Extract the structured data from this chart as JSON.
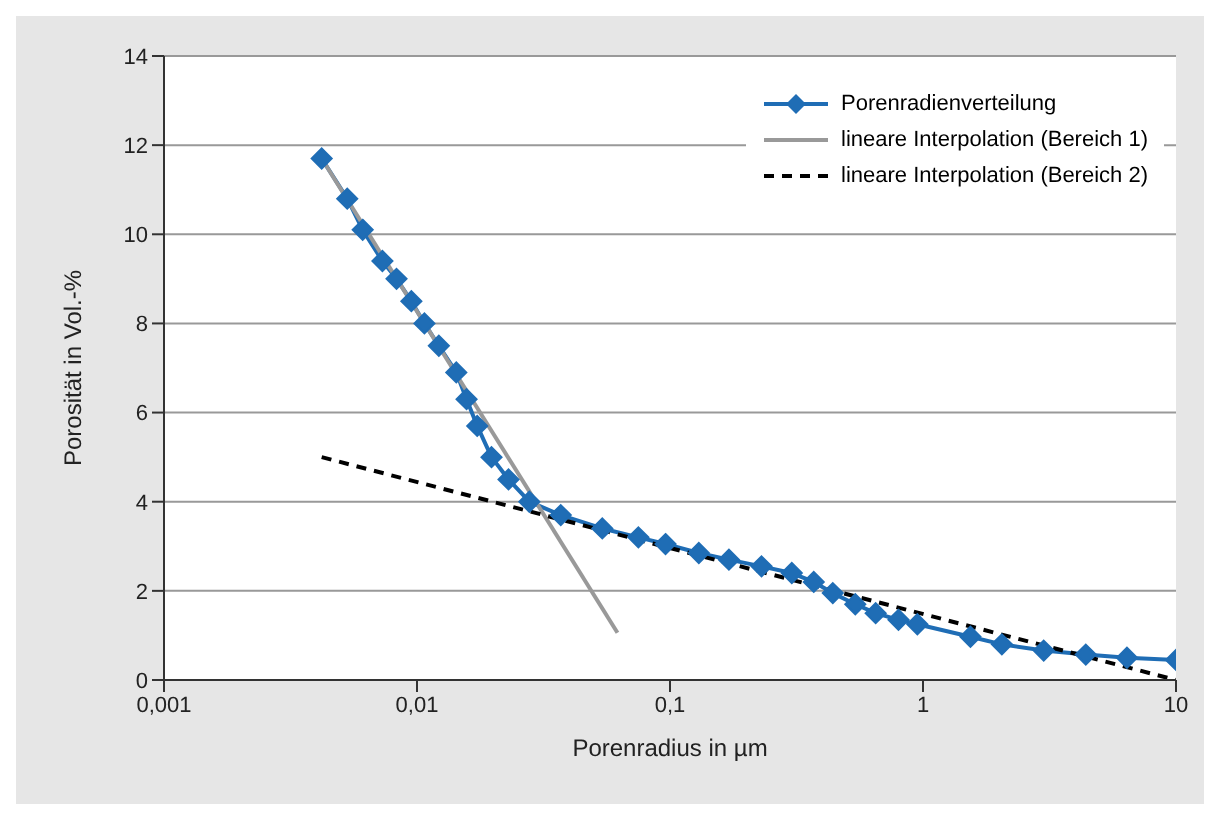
{
  "chart_data": {
    "type": "line",
    "xlabel": "Porenradius in µm",
    "ylabel": "Porosität in Vol.-%",
    "log": "x",
    "grid": "y",
    "legend": "top right",
    "xlim": [
      0.001,
      10
    ],
    "xticks": [
      {
        "value": 0.001,
        "label": "0,001"
      },
      {
        "value": 0.01,
        "label": "0,01"
      },
      {
        "value": 0.1,
        "label": "0,1"
      },
      1,
      10
    ],
    "ylim": [
      0,
      14
    ],
    "yticks": [
      0,
      2,
      4,
      6,
      8,
      10,
      12,
      14
    ],
    "series": [
      {
        "name": "Porenradienverteilung",
        "color": "#1f6db5",
        "marker": "diamond",
        "line_style": "solid",
        "x": [
          0.0042,
          0.0053,
          0.0061,
          0.0073,
          0.0083,
          0.0095,
          0.0107,
          0.0122,
          0.0143,
          0.0157,
          0.0173,
          0.0197,
          0.023,
          0.0278,
          0.037,
          0.054,
          0.075,
          0.096,
          0.13,
          0.171,
          0.23,
          0.303,
          0.37,
          0.44,
          0.54,
          0.65,
          0.8,
          0.95,
          1.54,
          2.05,
          3.0,
          4.4,
          6.4,
          10
        ],
        "values": [
          11.7,
          10.8,
          10.1,
          9.4,
          9.0,
          8.5,
          8.0,
          7.5,
          6.9,
          6.3,
          5.7,
          5.0,
          4.5,
          4.0,
          3.7,
          3.4,
          3.2,
          3.05,
          2.85,
          2.7,
          2.55,
          2.4,
          2.2,
          1.95,
          1.7,
          1.5,
          1.35,
          1.25,
          0.97,
          0.8,
          0.66,
          0.57,
          0.5,
          0.45
        ]
      },
      {
        "name": "lineare Interpolation (Bereich 1)",
        "type": "line",
        "color": "#999999",
        "marker": "none",
        "line_style": "solid",
        "x": [
          0.0042,
          0.062
        ],
        "values": [
          11.7,
          1.06
        ]
      },
      {
        "name": "lineare Interpolation (Bereich 2)",
        "type": "line",
        "color": "#000000",
        "marker": "none",
        "line_style": "dashed",
        "x": [
          0.0042,
          10
        ],
        "values": [
          5.0,
          0
        ]
      }
    ]
  }
}
